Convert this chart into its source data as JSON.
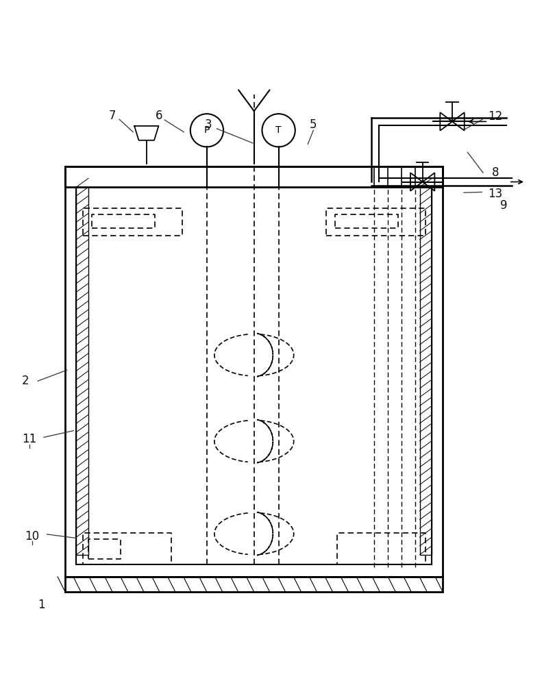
{
  "fig_width": 8.1,
  "fig_height": 10.0,
  "dpi": 100,
  "bg_color": "#ffffff",
  "line_color": "#000000"
}
